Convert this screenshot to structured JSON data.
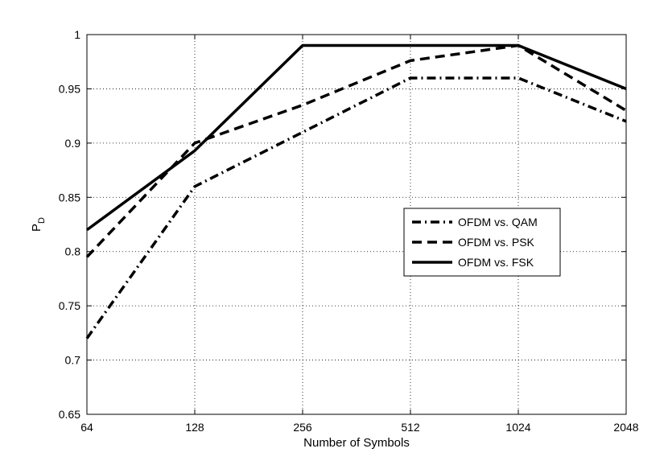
{
  "chart_data": {
    "type": "line",
    "categories": [
      "64",
      "128",
      "256",
      "512",
      "1024",
      "2048"
    ],
    "xlabel": "Number of Symbols",
    "ylabel": "P",
    "ylabel_subscript": "D",
    "ylim": [
      0.65,
      1.0
    ],
    "yticks": [
      0.65,
      0.7,
      0.75,
      0.8,
      0.85,
      0.9,
      0.95,
      1.0
    ],
    "ytick_labels": [
      "0.65",
      "0.7",
      "0.75",
      "0.8",
      "0.85",
      "0.9",
      "0.95",
      "1"
    ],
    "grid": true,
    "legend_position": "center-right",
    "series": [
      {
        "name": "OFDM vs. QAM",
        "values": [
          0.72,
          0.86,
          0.91,
          0.96,
          0.96,
          0.92
        ],
        "style": "dashdot",
        "color": "#000000"
      },
      {
        "name": "OFDM vs. PSK",
        "values": [
          0.795,
          0.9,
          0.935,
          0.976,
          0.99,
          0.93
        ],
        "style": "dashed",
        "color": "#000000"
      },
      {
        "name": "OFDM vs. FSK",
        "values": [
          0.82,
          0.893,
          0.99,
          0.99,
          0.99,
          0.95
        ],
        "style": "solid",
        "color": "#000000"
      }
    ]
  }
}
